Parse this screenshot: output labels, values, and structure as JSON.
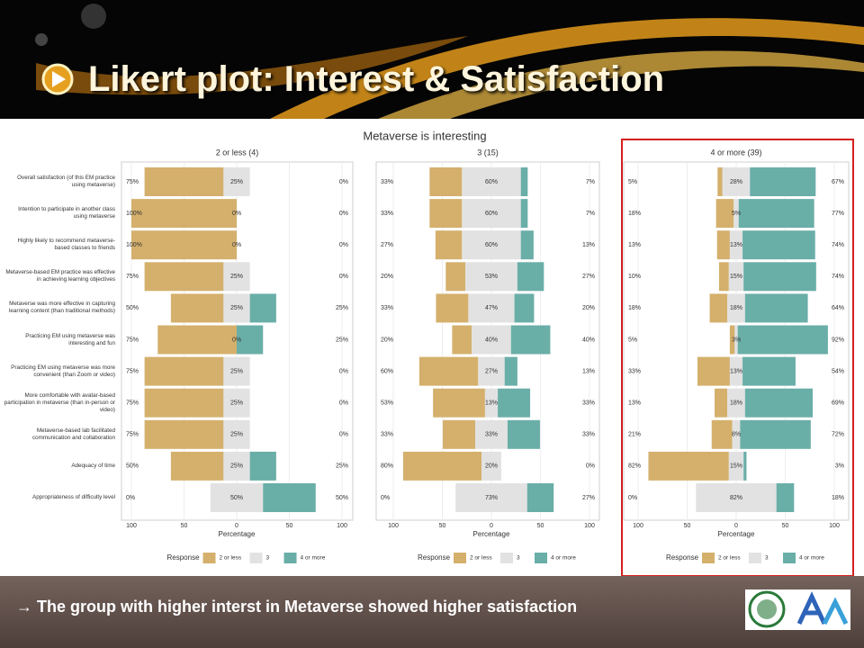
{
  "slide": {
    "title": "Likert plot: Interest & Satisfaction",
    "footer": "→ The group with  higher interst in Metaverse showed higher satisfaction"
  },
  "figure_title": "Metaverse is interesting",
  "chart_data": [
    {
      "type": "likert",
      "title": "2 or less (4)",
      "xlabel": "Percentage",
      "legend_title": "Response",
      "categories": [
        "Overall satisfaction (of this EM practice using metaverse)",
        "Intention to participate in another class using metaverse",
        "Highly likely to recommend metaverse-based classes to friends",
        "Metaverse-based EM practice was effective in achieving learning objectives",
        "Metaverse was more effective in capturing learning content (than traditional methods)",
        "Practicing EM using metaverse was interesting and fun",
        "Practicing EM using metaverse was more convenient (than Zoom or video)",
        "More comfortable with avatar-based participation in metaverse (than in-person or video)",
        "Metaverse-based lab facilitated communication and collaboration",
        "Adequacy of time",
        "Appropriateness of difficulty level"
      ],
      "xlim": [
        -100,
        100
      ],
      "xticks": [
        {
          "value": -100,
          "label": "100"
        },
        {
          "value": -50,
          "label": "50"
        },
        0,
        {
          "value": 50,
          "label": "50"
        },
        {
          "value": 100,
          "label": "100"
        }
      ],
      "series": [
        {
          "name": "2 or less",
          "color": "#d4b06c",
          "values": [
            75,
            100,
            100,
            75,
            50,
            75,
            75,
            75,
            75,
            50,
            0
          ],
          "value_labels": [
            "75%",
            "100%",
            "100%",
            "75%",
            "50%",
            "75%",
            "75%",
            "75%",
            "75%",
            "50%",
            "0%"
          ]
        },
        {
          "name": "3",
          "color": "#e2e2e2",
          "values": [
            25,
            0,
            0,
            25,
            25,
            0,
            25,
            25,
            25,
            25,
            50
          ],
          "value_labels": [
            "25%",
            "0%",
            "0%",
            "25%",
            "25%",
            "0%",
            "25%",
            "25%",
            "25%",
            "25%",
            "50%"
          ]
        },
        {
          "name": "4 or more",
          "color": "#6aaea8",
          "values": [
            0,
            0,
            0,
            0,
            25,
            25,
            0,
            0,
            0,
            25,
            50
          ],
          "value_labels": [
            "0%",
            "0%",
            "0%",
            "0%",
            "25%",
            "25%",
            "0%",
            "0%",
            "0%",
            "25%",
            "50%"
          ]
        }
      ]
    },
    {
      "type": "likert",
      "title": "3 (15)",
      "xlabel": "Percentage",
      "legend_title": "Response",
      "xlim": [
        -100,
        100
      ],
      "xticks": [
        {
          "value": -100,
          "label": "100"
        },
        {
          "value": -50,
          "label": "50"
        },
        0,
        {
          "value": 50,
          "label": "50"
        },
        {
          "value": 100,
          "label": "100"
        }
      ],
      "series": [
        {
          "name": "2 or less",
          "color": "#d4b06c",
          "values": [
            33,
            33,
            27,
            20,
            33,
            20,
            60,
            53,
            33,
            80,
            0
          ],
          "value_labels": [
            "33%",
            "33%",
            "27%",
            "20%",
            "33%",
            "20%",
            "60%",
            "53%",
            "33%",
            "80%",
            "0%"
          ]
        },
        {
          "name": "3",
          "color": "#e2e2e2",
          "values": [
            60,
            60,
            60,
            53,
            47,
            40,
            27,
            13,
            33,
            20,
            73
          ],
          "value_labels": [
            "60%",
            "60%",
            "60%",
            "53%",
            "47%",
            "40%",
            "27%",
            "13%",
            "33%",
            "20%",
            "73%"
          ]
        },
        {
          "name": "4 or more",
          "color": "#6aaea8",
          "values": [
            7,
            7,
            13,
            27,
            20,
            40,
            13,
            33,
            33,
            0,
            27
          ],
          "value_labels": [
            "7%",
            "7%",
            "13%",
            "27%",
            "20%",
            "40%",
            "13%",
            "33%",
            "33%",
            "0%",
            "27%"
          ]
        }
      ]
    },
    {
      "type": "likert",
      "title": "4 or more (39)",
      "xlabel": "Percentage",
      "legend_title": "Response",
      "xlim": [
        -100,
        100
      ],
      "xticks": [
        {
          "value": -100,
          "label": "100"
        },
        {
          "value": -50,
          "label": "50"
        },
        0,
        {
          "value": 50,
          "label": "50"
        },
        {
          "value": 100,
          "label": "100"
        }
      ],
      "series": [
        {
          "name": "2 or less",
          "color": "#d4b06c",
          "values": [
            5,
            18,
            13,
            10,
            18,
            5,
            33,
            13,
            21,
            82,
            0
          ],
          "value_labels": [
            "5%",
            "18%",
            "13%",
            "10%",
            "18%",
            "5%",
            "33%",
            "13%",
            "21%",
            "82%",
            "0%"
          ]
        },
        {
          "name": "3",
          "color": "#e2e2e2",
          "values": [
            28,
            5,
            13,
            15,
            18,
            3,
            13,
            18,
            8,
            15,
            82
          ],
          "value_labels": [
            "28%",
            "5%",
            "13%",
            "15%",
            "18%",
            "3%",
            "13%",
            "18%",
            "8%",
            "15%",
            "82%"
          ]
        },
        {
          "name": "4 or more",
          "color": "#6aaea8",
          "values": [
            67,
            77,
            74,
            74,
            64,
            92,
            54,
            69,
            72,
            3,
            18
          ],
          "value_labels": [
            "67%",
            "77%",
            "74%",
            "74%",
            "64%",
            "92%",
            "54%",
            "69%",
            "72%",
            "3%",
            "18%"
          ]
        }
      ]
    }
  ]
}
